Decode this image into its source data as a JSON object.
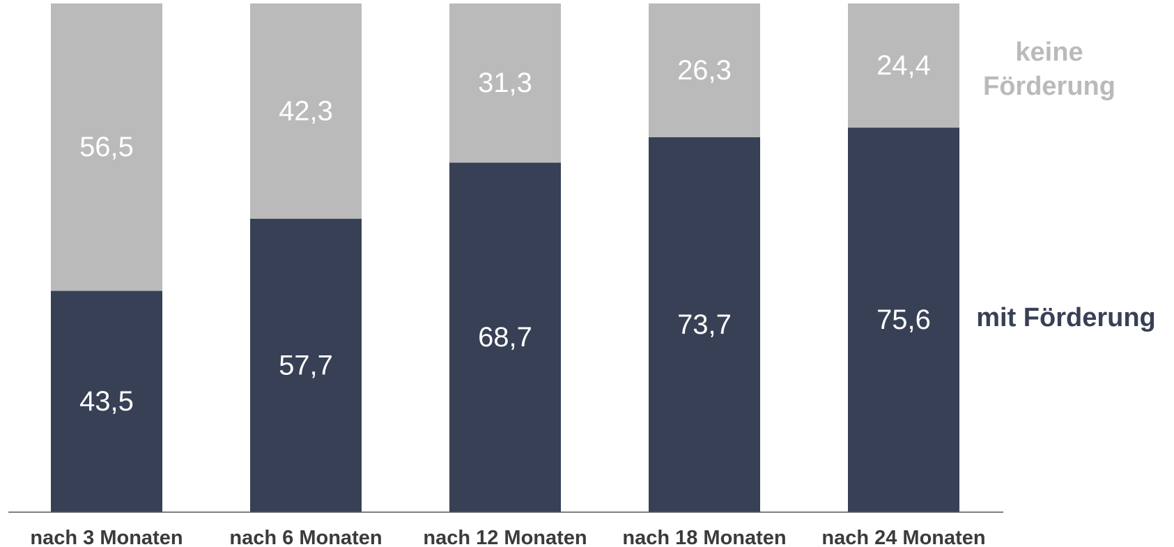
{
  "chart_data": {
    "type": "bar",
    "stacked": true,
    "categories": [
      "nach 3 Monaten",
      "nach 6 Monaten",
      "nach 12 Monaten",
      "nach 18 Monaten",
      "nach 24 Monaten"
    ],
    "series": [
      {
        "name": "mit Förderung",
        "values": [
          43.5,
          57.7,
          68.7,
          73.7,
          75.6
        ],
        "labels": [
          "43,5",
          "57,7",
          "68,7",
          "73,7",
          "75,6"
        ],
        "color": "#384055"
      },
      {
        "name": "keine Förderung",
        "values": [
          56.5,
          42.3,
          31.3,
          26.3,
          24.4
        ],
        "labels": [
          "56,5",
          "42,3",
          "31,3",
          "26,3",
          "24,4"
        ],
        "color": "#bababa"
      }
    ],
    "legend": {
      "placement": "right",
      "entries": [
        {
          "lines": [
            "keine",
            "Förderung"
          ],
          "color": "#bababa"
        },
        {
          "lines": [
            "mit Förderung"
          ],
          "color": "#384055"
        }
      ]
    },
    "ylim": [
      0,
      100
    ],
    "grid": false,
    "axis_color": "#555555"
  }
}
